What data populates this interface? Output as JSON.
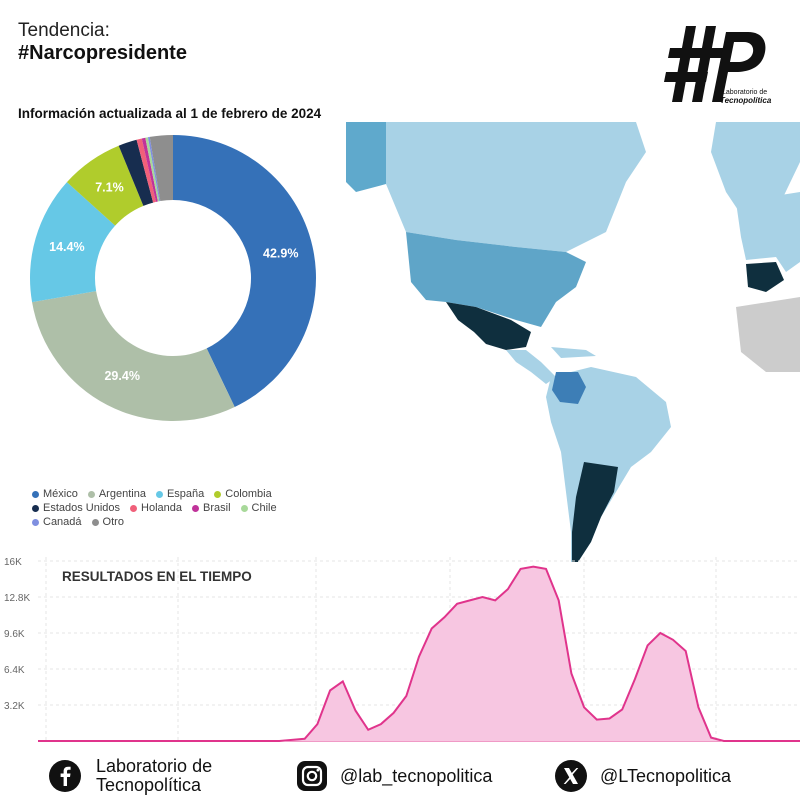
{
  "header": {
    "tag_line": "Tendencia:",
    "hashtag": "#Narcopresidente",
    "info_date": "Información actualizada al 1 de febrero de 2024"
  },
  "logo": {
    "line1": "Laboratorio de",
    "line2": "Tecnopolítica",
    "icon": "hashtag-lp-logo"
  },
  "colors": {
    "mexico": "#3571b8",
    "argentina": "#aebfa8",
    "espana": "#66c8e6",
    "colombia": "#b0cc2c",
    "estados_unidos": "#172d4f",
    "holanda": "#f0607a",
    "brasil": "#c0339a",
    "chile": "#a8d99a",
    "canada": "#7f8fe0",
    "otro": "#8e8e8e",
    "area_fill": "#f7c6e1",
    "area_line": "#e0348c"
  },
  "chart_data": [
    {
      "type": "pie",
      "title": "",
      "categories": [
        "México",
        "Argentina",
        "España",
        "Colombia",
        "Estados Unidos",
        "Holanda",
        "Brasil",
        "Chile",
        "Canadá",
        "Otro"
      ],
      "values": [
        42.9,
        29.4,
        14.4,
        7.1,
        2.1,
        0.6,
        0.4,
        0.3,
        0.2,
        2.6
      ],
      "labels_shown": [
        "42.9%",
        "29.4%",
        "14.4%",
        "7.1%",
        "",
        "",
        "",
        "",
        "",
        ""
      ],
      "legend": "bottom"
    },
    {
      "type": "area",
      "title": "RESULTADOS EN EL TIEMPO",
      "y_ticks": [
        "3.2K",
        "6.4K",
        "9.6K",
        "12.8K",
        "16K"
      ],
      "ylim": [
        0,
        16000
      ],
      "x": [
        0,
        1,
        2,
        3,
        4,
        5,
        6,
        7,
        8,
        9,
        10,
        11,
        12,
        13,
        14,
        15,
        16,
        17,
        18,
        19,
        20,
        21,
        22,
        23,
        24,
        25,
        26,
        27,
        28,
        29,
        30,
        31,
        32,
        33,
        34,
        35,
        36,
        37,
        38,
        39,
        40,
        41,
        42,
        43,
        44,
        45,
        46,
        47,
        48,
        49,
        50,
        51,
        52,
        53,
        54,
        55,
        56,
        57,
        58,
        59,
        60
      ],
      "values": [
        0,
        0,
        0,
        0,
        0,
        0,
        0,
        0,
        0,
        0,
        0,
        0,
        0,
        0,
        0,
        0,
        0,
        0,
        0,
        0,
        100,
        200,
        1500,
        4500,
        5300,
        2700,
        1000,
        1500,
        2500,
        4000,
        7500,
        10000,
        11000,
        12200,
        12500,
        12800,
        12500,
        13500,
        15300,
        15500,
        15300,
        12500,
        6000,
        3000,
        1900,
        2000,
        2800,
        5500,
        8500,
        9600,
        9000,
        8000,
        3000,
        300,
        0,
        0,
        0,
        0,
        0,
        0,
        0
      ],
      "grid": true
    }
  ],
  "footer": {
    "facebook_text": "Laboratorio de\nTecnopolítica",
    "facebook_line1": "Laboratorio de",
    "facebook_line2": "Tecnopolítica",
    "instagram_text": "@lab_tecnopolitica",
    "x_text": "@LTecnopolitica",
    "icons": [
      "facebook-icon",
      "instagram-icon",
      "x-icon"
    ]
  }
}
